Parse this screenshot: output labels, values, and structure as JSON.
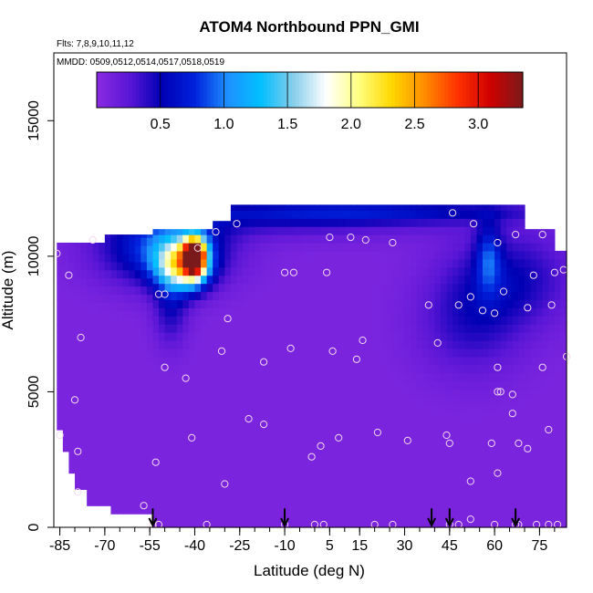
{
  "chart_data": {
    "type": "heatmap",
    "title": "ATOM4 Northbound PPN_GMI",
    "subtitle_flights": "Flts: 7,8,9,10,11,12",
    "subtitle_dates": "MMDD: 0509,0512,0514,0517,0518,0519",
    "xlabel": "Latitude (deg N)",
    "ylabel": "Altitude (m)",
    "xlim": [
      -87,
      84
    ],
    "ylim": [
      0,
      17500
    ],
    "x_ticks": [
      "-85",
      "-70",
      "-55",
      "-40",
      "-25",
      "-10",
      "5",
      "15",
      "30",
      "45",
      "60",
      "75"
    ],
    "x_tick_values": [
      -85,
      -70,
      -55,
      -40,
      -25,
      -10,
      5,
      15,
      30,
      45,
      60,
      75
    ],
    "y_ticks": [
      "0",
      "5000",
      "10000",
      "15000"
    ],
    "y_tick_values": [
      0,
      5000,
      10000,
      15000
    ],
    "colorbar": {
      "range": [
        0,
        3.35
      ],
      "ticks": [
        "0.5",
        "1.0",
        "1.5",
        "2.0",
        "2.5",
        "3.0"
      ],
      "tick_values": [
        0.5,
        1.0,
        1.5,
        2.0,
        2.5,
        3.0
      ],
      "colors": [
        "#8a2be2",
        "#5a16d6",
        "#0000b4",
        "#0022dd",
        "#1e90ff",
        "#00bfff",
        "#87ceeb",
        "#ffffff",
        "#ffff80",
        "#ffd700",
        "#ff8c00",
        "#ff3300",
        "#d00000",
        "#7a1a1a"
      ]
    },
    "profile_markers_lat": [
      -54,
      -10,
      39,
      45,
      67
    ],
    "observations": [
      [
        -86,
        10100
      ],
      [
        -82,
        9300
      ],
      [
        -85,
        3400
      ],
      [
        -80,
        4700
      ],
      [
        -79,
        2800
      ],
      [
        -79,
        1300
      ],
      [
        -78,
        7000
      ],
      [
        -74,
        10600
      ],
      [
        -57,
        800
      ],
      [
        -54,
        100
      ],
      [
        -52,
        100
      ],
      [
        -50,
        5900
      ],
      [
        -52,
        8600
      ],
      [
        -50,
        8600
      ],
      [
        -53,
        2400
      ],
      [
        -41,
        3300
      ],
      [
        -43,
        5500
      ],
      [
        -39,
        10300
      ],
      [
        -36,
        100
      ],
      [
        -33,
        10900
      ],
      [
        -30,
        1600
      ],
      [
        -29,
        7700
      ],
      [
        -31,
        6500
      ],
      [
        -26,
        11200
      ],
      [
        -22,
        4000
      ],
      [
        -17,
        3800
      ],
      [
        -17,
        6100
      ],
      [
        -10,
        9400
      ],
      [
        -7,
        9400
      ],
      [
        -8,
        6600
      ],
      [
        -10,
        100
      ],
      [
        -1,
        2600
      ],
      [
        0,
        100
      ],
      [
        3,
        100
      ],
      [
        2,
        3000
      ],
      [
        4,
        9400
      ],
      [
        5,
        10700
      ],
      [
        6,
        6500
      ],
      [
        8,
        3300
      ],
      [
        12,
        10700
      ],
      [
        14,
        6200
      ],
      [
        16,
        6900
      ],
      [
        17,
        10600
      ],
      [
        20,
        100
      ],
      [
        21,
        3500
      ],
      [
        26,
        100
      ],
      [
        26,
        10500
      ],
      [
        31,
        3200
      ],
      [
        38,
        8200
      ],
      [
        41,
        6800
      ],
      [
        44,
        3400
      ],
      [
        45,
        3100
      ],
      [
        45,
        100
      ],
      [
        46,
        11600
      ],
      [
        48,
        100
      ],
      [
        48,
        8200
      ],
      [
        52,
        1700
      ],
      [
        52,
        300
      ],
      [
        52,
        8500
      ],
      [
        53,
        11200
      ],
      [
        56,
        8000
      ],
      [
        60,
        100
      ],
      [
        59,
        3100
      ],
      [
        60,
        7900
      ],
      [
        61,
        2000
      ],
      [
        61,
        5000
      ],
      [
        62,
        5000
      ],
      [
        61,
        5900
      ],
      [
        61,
        10500
      ],
      [
        63,
        8700
      ],
      [
        66,
        4900
      ],
      [
        66,
        4200
      ],
      [
        67,
        100
      ],
      [
        67,
        10800
      ],
      [
        68,
        3100
      ],
      [
        68,
        100
      ],
      [
        71,
        2900
      ],
      [
        71,
        8100
      ],
      [
        73,
        9300
      ],
      [
        74,
        100
      ],
      [
        76,
        5900
      ],
      [
        76,
        10800
      ],
      [
        78,
        3600
      ],
      [
        78,
        100
      ],
      [
        79,
        8200
      ],
      [
        80,
        9400
      ],
      [
        81,
        100
      ],
      [
        83,
        9500
      ],
      [
        84,
        6300
      ]
    ]
  }
}
